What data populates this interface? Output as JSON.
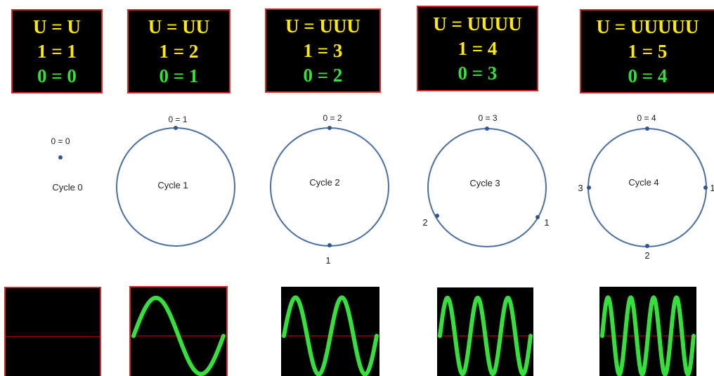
{
  "equations": [
    {
      "line1": "U = U",
      "line2": "1 = 1",
      "line3": "0 = 0"
    },
    {
      "line1": "U = UU",
      "line2": "1 = 2",
      "line3": "0 = 1"
    },
    {
      "line1": "U = UUU",
      "line2": "1 = 3",
      "line3": "0 = 2"
    },
    {
      "line1": "U = UUUU",
      "line2": "1 = 4",
      "line3": "0 = 3"
    },
    {
      "line1": "U = UUUUU",
      "line2": "1 = 5",
      "line3": "0 = 4"
    }
  ],
  "cycles": [
    {
      "label": "Cycle 0",
      "points": [
        "0 = 0"
      ]
    },
    {
      "label": "Cycle 1",
      "points": [
        "0 = 1"
      ]
    },
    {
      "label": "Cycle 2",
      "points": [
        "0 = 2",
        "1"
      ]
    },
    {
      "label": "Cycle 3",
      "points": [
        "0 = 3",
        "1",
        "2"
      ]
    },
    {
      "label": "Cycle 4",
      "points": [
        "0 = 4",
        "1",
        "2",
        "3"
      ]
    }
  ],
  "waves": [
    {
      "cycles": 0
    },
    {
      "cycles": 1
    },
    {
      "cycles": 2
    },
    {
      "cycles": 3
    },
    {
      "cycles": 4
    }
  ],
  "colors": {
    "box_border": "#d62828",
    "yellow_text": "#ffeb00",
    "green_text": "#33e13a",
    "circle_stroke": "#4a6fa5",
    "dot": "#2f5597",
    "wave": "#33e13a",
    "baseline": "#c00000"
  }
}
